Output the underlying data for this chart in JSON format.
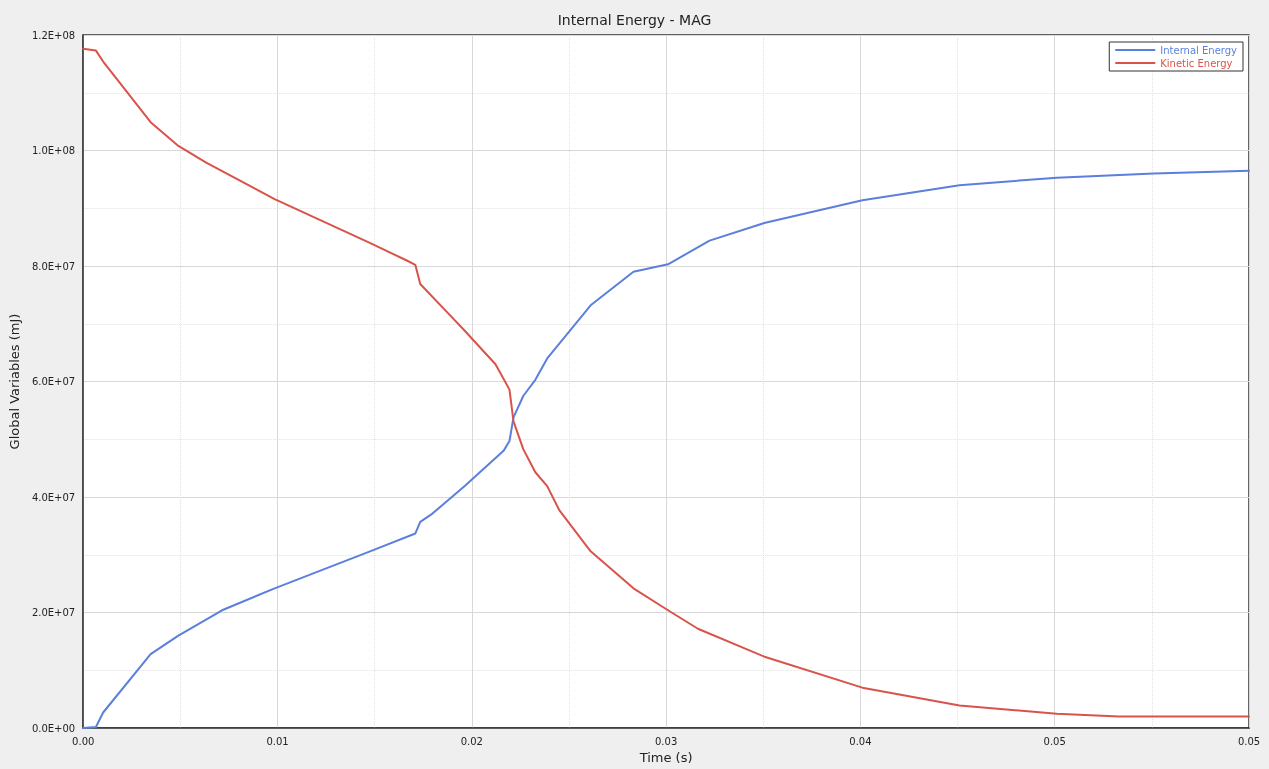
{
  "chart_data": {
    "type": "line",
    "title": "Internal Energy - MAG",
    "xlabel": "Time (s)",
    "ylabel": "Global Variables (mJ)",
    "xlim": [
      0,
      0.055
    ],
    "xticks": [
      {
        "value": 0,
        "label": "0.00"
      },
      {
        "value": 0.0045833,
        "label": null
      },
      {
        "value": 0.0091667,
        "label": "0.01"
      },
      {
        "value": 0.01375,
        "label": null
      },
      {
        "value": 0.0183333,
        "label": "0.02"
      },
      {
        "value": 0.0229167,
        "label": null
      },
      {
        "value": 0.0275,
        "label": "0.03"
      },
      {
        "value": 0.0320833,
        "label": null
      },
      {
        "value": 0.0366667,
        "label": "0.04"
      },
      {
        "value": 0.04125,
        "label": null
      },
      {
        "value": 0.0458333,
        "label": "0.05"
      },
      {
        "value": 0.0504167,
        "label": null
      },
      {
        "value": 0.055,
        "label": "0.05"
      }
    ],
    "ylim": [
      0,
      120000000
    ],
    "yticks": [
      {
        "value": 0,
        "label": "0.0E+00"
      },
      {
        "value": 10000000,
        "label": null
      },
      {
        "value": 20000000,
        "label": "2.0E+07"
      },
      {
        "value": 30000000,
        "label": null
      },
      {
        "value": 40000000,
        "label": "4.0E+07"
      },
      {
        "value": 50000000,
        "label": null
      },
      {
        "value": 60000000,
        "label": "6.0E+07"
      },
      {
        "value": 70000000,
        "label": null
      },
      {
        "value": 80000000,
        "label": "8.0E+07"
      },
      {
        "value": 90000000,
        "label": null
      },
      {
        "value": 100000000,
        "label": "1.0E+08"
      },
      {
        "value": 110000000,
        "label": null
      },
      {
        "value": 120000000,
        "label": "1.2E+08"
      }
    ],
    "grid": true,
    "legend": "top right",
    "marker": "none",
    "line_style": "solid",
    "series": [
      {
        "name": "Internal Energy",
        "color": "#5b7fdc",
        "x": [
          0,
          0.0006,
          0.00094,
          0.00318,
          0.00449,
          0.00655,
          0.00903,
          0.01347,
          0.01567,
          0.0159,
          0.01646,
          0.018,
          0.01983,
          0.02011,
          0.0203,
          0.02076,
          0.02133,
          0.02189,
          0.02394,
          0.02596,
          0.02759,
          0.02955,
          0.03218,
          0.03676,
          0.04134,
          0.04593,
          0.05051,
          0.055
        ],
        "values": [
          0,
          200000,
          2700000,
          12800000,
          16000000,
          20400000,
          24200000,
          30500000,
          33700000,
          35700000,
          37100000,
          41900000,
          48000000,
          49700000,
          53800000,
          57500000,
          60300000,
          64000000,
          73200000,
          79000000,
          80300000,
          84400000,
          87500000,
          91400000,
          94000000,
          95300000,
          96000000,
          96500000
        ]
      },
      {
        "name": "Kinetic Energy",
        "color": "#d9534a",
        "x": [
          0,
          0.0006,
          0.00094,
          0.00318,
          0.00449,
          0.0058,
          0.00903,
          0.01347,
          0.01524,
          0.01567,
          0.0159,
          0.01722,
          0.018,
          0.01945,
          0.02011,
          0.0203,
          0.02076,
          0.02133,
          0.02189,
          0.02245,
          0.02394,
          0.02596,
          0.02759,
          0.029,
          0.03218,
          0.03676,
          0.04134,
          0.04593,
          0.04886,
          0.055
        ],
        "values": [
          117600000,
          117300000,
          115400000,
          104900000,
          100800000,
          97900000,
          91600000,
          84100000,
          81000000,
          80200000,
          76900000,
          71800000,
          68800000,
          63000000,
          58600000,
          53100000,
          48300000,
          44300000,
          41900000,
          37800000,
          30600000,
          24200000,
          20400000,
          17200000,
          12300000,
          7000000,
          3900000,
          2500000,
          2000000,
          2000000
        ]
      }
    ]
  }
}
